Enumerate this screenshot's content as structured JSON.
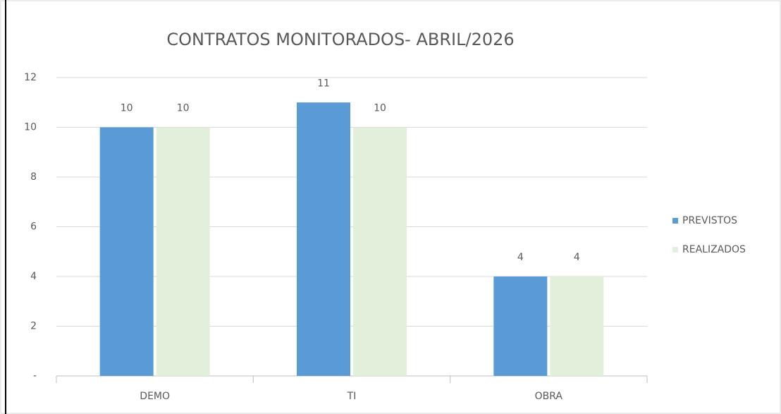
{
  "chart_data": {
    "type": "bar",
    "title": "CONTRATOS MONITORADOS- ABRIL/2026",
    "categories": [
      "DEMO",
      "TI",
      "OBRA"
    ],
    "series": [
      {
        "name": "PREVISTOS",
        "color": "#5b9bd5",
        "values": [
          10,
          11,
          4
        ]
      },
      {
        "name": "REALIZADOS",
        "color": "#e2efda",
        "values": [
          10,
          10,
          4
        ]
      }
    ],
    "ylim": [
      0,
      12
    ],
    "yticks": [
      {
        "value": 0,
        "label": "-"
      },
      2,
      4,
      6,
      8,
      10,
      12
    ],
    "grid": true,
    "legend": "right"
  }
}
